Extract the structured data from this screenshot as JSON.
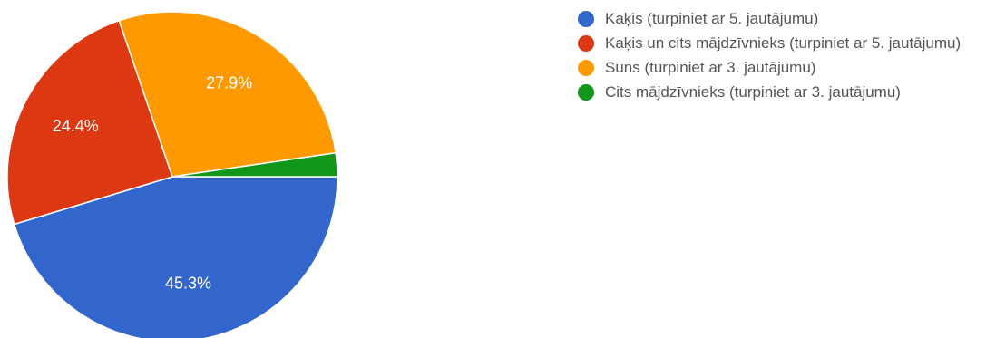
{
  "chart_data": {
    "type": "pie",
    "slices": [
      {
        "label": "Kaķis (turpiniet ar 5. jautājumu)",
        "value": 45.3,
        "value_label": "45.3%",
        "color": "#3366cc",
        "show_label": true
      },
      {
        "label": "Kaķis un cits mājdzīvnieks (turpiniet ar 5. jautājumu)",
        "value": 24.4,
        "value_label": "24.4%",
        "color": "#dc3912",
        "show_label": true
      },
      {
        "label": "Suns (turpiniet ar 3. jautājumu)",
        "value": 27.9,
        "value_label": "27.9%",
        "color": "#ff9900",
        "show_label": true
      },
      {
        "label": "Cits mājdzīvnieks (turpiniet ar 3. jautājumu)",
        "value": 2.3,
        "value_label": "",
        "color": "#109618",
        "show_label": false
      }
    ],
    "legend_position": "right",
    "start_direction": "east",
    "winding": "clockwise"
  }
}
